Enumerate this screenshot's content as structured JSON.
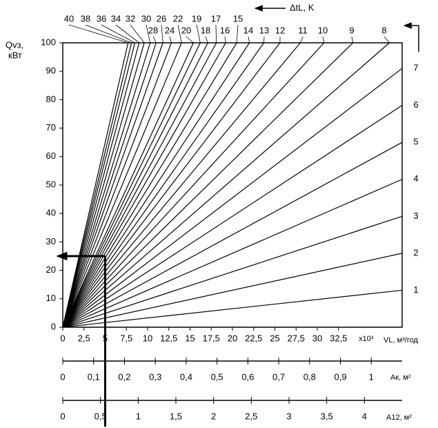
{
  "chart_data": [
    {
      "type": "line",
      "ylabel": [
        "Qvз,",
        "кВт"
      ],
      "xlabel": "VL, м³/год",
      "xunit": "x10³",
      "series_title": "ΔtL, K",
      "xlim": [
        0,
        40
      ],
      "ylim": [
        0,
        100
      ],
      "xticks": [
        0,
        {
          "value": 2.5,
          "label": "2,5"
        },
        5,
        {
          "value": 7.5,
          "label": "7,5"
        },
        10,
        {
          "value": 12.5,
          "label": "12,5"
        },
        15,
        {
          "value": 17.5,
          "label": "17,5"
        },
        20,
        {
          "value": 22.5,
          "label": "22,5"
        },
        25,
        {
          "value": 27.5,
          "label": "27,5"
        },
        30,
        {
          "value": 32.5,
          "label": "32,5"
        }
      ],
      "yticks": [
        0,
        10,
        20,
        30,
        40,
        50,
        60,
        70,
        80,
        90,
        100
      ],
      "series": [
        {
          "name": "40",
          "color": "#000000",
          "x": [
            0,
            7.7
          ],
          "values": [
            0,
            100
          ]
        },
        {
          "name": "38",
          "color": "#000000",
          "x": [
            0,
            8.1
          ],
          "values": [
            0,
            100
          ]
        },
        {
          "name": "36",
          "color": "#000000",
          "x": [
            0,
            8.5
          ],
          "values": [
            0,
            100
          ]
        },
        {
          "name": "34",
          "color": "#000000",
          "x": [
            0,
            9.0
          ],
          "values": [
            0,
            100
          ]
        },
        {
          "name": "32",
          "color": "#000000",
          "x": [
            0,
            9.6
          ],
          "values": [
            0,
            100
          ]
        },
        {
          "name": "30",
          "color": "#000000",
          "x": [
            0,
            10.3
          ],
          "values": [
            0,
            100
          ]
        },
        {
          "name": "28",
          "color": "#000000",
          "x": [
            0,
            11.0
          ],
          "values": [
            0,
            100
          ]
        },
        {
          "name": "26",
          "color": "#000000",
          "x": [
            0,
            11.8
          ],
          "values": [
            0,
            100
          ]
        },
        {
          "name": "24",
          "color": "#000000",
          "x": [
            0,
            12.8
          ],
          "values": [
            0,
            100
          ]
        },
        {
          "name": "22",
          "color": "#000000",
          "x": [
            0,
            14.0
          ],
          "values": [
            0,
            100
          ]
        },
        {
          "name": "20",
          "color": "#000000",
          "x": [
            0,
            15.4
          ],
          "values": [
            0,
            100
          ]
        },
        {
          "name": "19",
          "color": "#000000",
          "x": [
            0,
            16.2
          ],
          "values": [
            0,
            100
          ]
        },
        {
          "name": "18",
          "color": "#000000",
          "x": [
            0,
            17.1
          ],
          "values": [
            0,
            100
          ]
        },
        {
          "name": "17",
          "color": "#000000",
          "x": [
            0,
            18.1
          ],
          "values": [
            0,
            100
          ]
        },
        {
          "name": "16",
          "color": "#000000",
          "x": [
            0,
            19.2
          ],
          "values": [
            0,
            100
          ]
        },
        {
          "name": "15",
          "color": "#000000",
          "x": [
            0,
            20.5
          ],
          "values": [
            0,
            100
          ]
        },
        {
          "name": "14",
          "color": "#000000",
          "x": [
            0,
            22.0
          ],
          "values": [
            0,
            100
          ]
        },
        {
          "name": "13",
          "color": "#000000",
          "x": [
            0,
            23.7
          ],
          "values": [
            0,
            100
          ]
        },
        {
          "name": "12",
          "color": "#000000",
          "x": [
            0,
            25.6
          ],
          "values": [
            0,
            100
          ]
        },
        {
          "name": "11",
          "color": "#000000",
          "x": [
            0,
            28.0
          ],
          "values": [
            0,
            100
          ]
        },
        {
          "name": "10",
          "color": "#000000",
          "x": [
            0,
            30.8
          ],
          "values": [
            0,
            100
          ]
        },
        {
          "name": "9",
          "color": "#000000",
          "x": [
            0,
            34.2
          ],
          "values": [
            0,
            100
          ]
        },
        {
          "name": "8",
          "color": "#000000",
          "x": [
            0,
            38.5
          ],
          "values": [
            0,
            100
          ]
        },
        {
          "name": "7",
          "color": "#000000",
          "x": [
            0,
            40
          ],
          "values": [
            0,
            91
          ]
        },
        {
          "name": "6",
          "color": "#000000",
          "x": [
            0,
            40
          ],
          "values": [
            0,
            78
          ]
        },
        {
          "name": "5",
          "color": "#000000",
          "x": [
            0,
            40
          ],
          "values": [
            0,
            65
          ]
        },
        {
          "name": "4",
          "color": "#000000",
          "x": [
            0,
            40
          ],
          "values": [
            0,
            52
          ]
        },
        {
          "name": "3",
          "color": "#000000",
          "x": [
            0,
            40
          ],
          "values": [
            0,
            39
          ]
        },
        {
          "name": "2",
          "color": "#000000",
          "x": [
            0,
            40
          ],
          "values": [
            0,
            26
          ]
        },
        {
          "name": "1",
          "color": "#000000",
          "x": [
            0,
            40
          ],
          "values": [
            0,
            13
          ]
        }
      ],
      "example": {
        "x": 5,
        "y": 25
      }
    },
    {
      "type": "axis",
      "xlabel": "Ак, м²",
      "xlim": [
        0,
        1.1
      ],
      "xticks": [
        0,
        {
          "value": 0.1,
          "label": "0,1"
        },
        {
          "value": 0.2,
          "label": "0,2"
        },
        {
          "value": 0.3,
          "label": "0,3"
        },
        {
          "value": 0.4,
          "label": "0,4"
        },
        {
          "value": 0.5,
          "label": "0,5"
        },
        {
          "value": 0.6,
          "label": "0,6"
        },
        {
          "value": 0.7,
          "label": "0,7"
        },
        {
          "value": 0.8,
          "label": "0,8"
        },
        {
          "value": 0.9,
          "label": "0,9"
        },
        1
      ]
    },
    {
      "type": "axis",
      "xlabel": "A12, м²",
      "xlim": [
        0,
        4.5
      ],
      "xticks": [
        0,
        {
          "value": 0.5,
          "label": "0,5"
        },
        1,
        {
          "value": 1.5,
          "label": "1,5"
        },
        2,
        {
          "value": 2.5,
          "label": "2,5"
        },
        3,
        {
          "value": 3.5,
          "label": "3,5"
        },
        4
      ]
    }
  ]
}
